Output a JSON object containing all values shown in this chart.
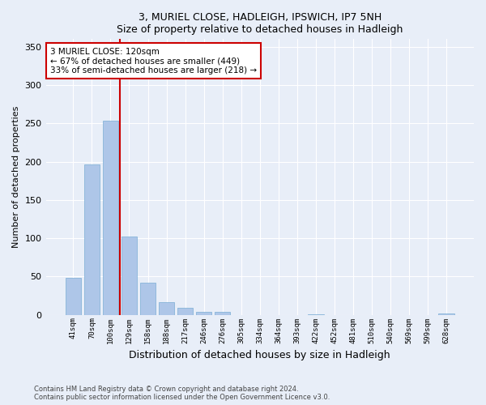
{
  "title1": "3, MURIEL CLOSE, HADLEIGH, IPSWICH, IP7 5NH",
  "title2": "Size of property relative to detached houses in Hadleigh",
  "xlabel": "Distribution of detached houses by size in Hadleigh",
  "ylabel": "Number of detached properties",
  "categories": [
    "41sqm",
    "70sqm",
    "100sqm",
    "129sqm",
    "158sqm",
    "188sqm",
    "217sqm",
    "246sqm",
    "276sqm",
    "305sqm",
    "334sqm",
    "364sqm",
    "393sqm",
    "422sqm",
    "452sqm",
    "481sqm",
    "510sqm",
    "540sqm",
    "569sqm",
    "599sqm",
    "628sqm"
  ],
  "values": [
    48,
    196,
    253,
    102,
    42,
    17,
    9,
    4,
    4,
    0,
    0,
    0,
    0,
    1,
    0,
    0,
    0,
    0,
    0,
    0,
    2
  ],
  "bar_color": "#aec6e8",
  "bar_edge_color": "#7aadd4",
  "vline_x_index": 2.5,
  "vline_color": "#cc0000",
  "annotation_text": "3 MURIEL CLOSE: 120sqm\n← 67% of detached houses are smaller (449)\n33% of semi-detached houses are larger (218) →",
  "annotation_box_color": "#ffffff",
  "annotation_box_edge_color": "#cc0000",
  "ylim": [
    0,
    360
  ],
  "yticks": [
    0,
    50,
    100,
    150,
    200,
    250,
    300,
    350
  ],
  "background_color": "#e8eef8",
  "plot_background_color": "#e8eef8",
  "footer1": "Contains HM Land Registry data © Crown copyright and database right 2024.",
  "footer2": "Contains public sector information licensed under the Open Government Licence v3.0."
}
